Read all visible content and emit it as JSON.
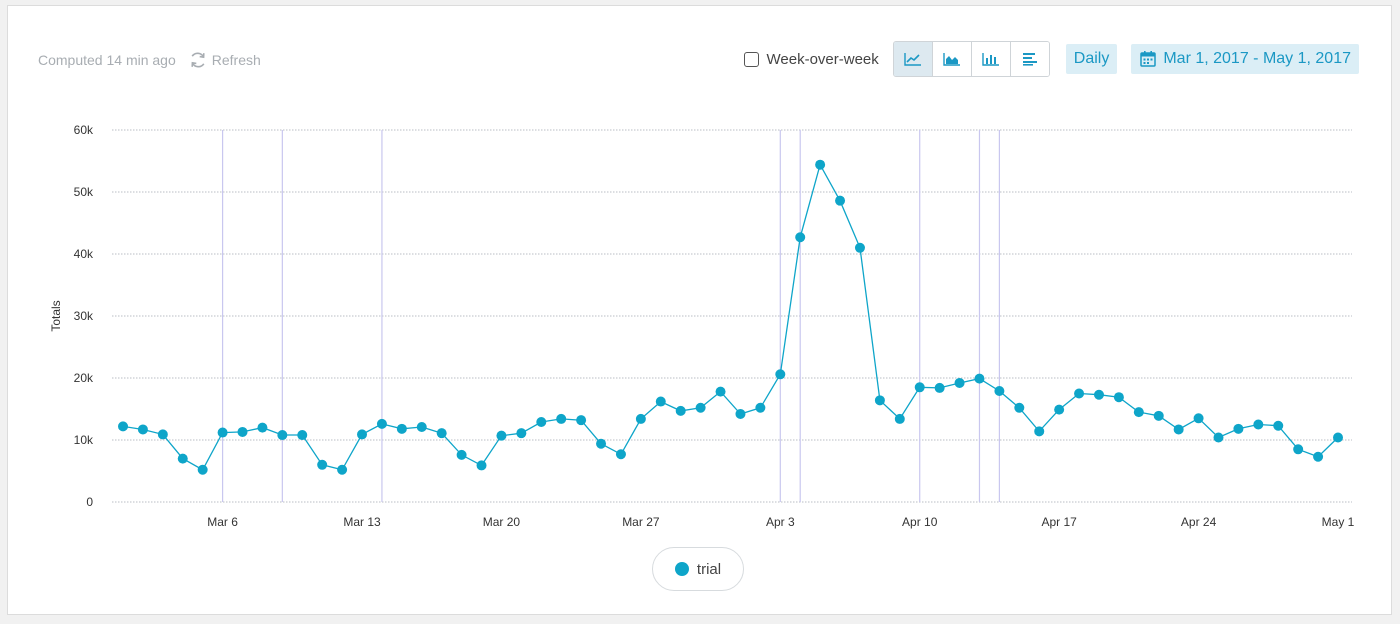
{
  "header": {
    "computed_label": "Computed 14 min ago",
    "refresh_label": "Refresh"
  },
  "toolbar": {
    "week_over_week_label": "Week-over-week",
    "week_over_week_checked": false,
    "view_buttons": [
      "line-chart",
      "area-chart",
      "bar-chart",
      "table"
    ],
    "active_view": "line-chart",
    "interval_label": "Daily",
    "date_range_label": "Mar 1, 2017 - May 1, 2017"
  },
  "colors": {
    "series": "#0ea5c9",
    "accent": "#1b98c4",
    "gridline": "#b9bec4",
    "marker_line": "#c9c7ef"
  },
  "chart_data": {
    "type": "line",
    "ylabel": "Totals",
    "xlabel": "",
    "ylim": [
      0,
      60000
    ],
    "y_ticks": [
      0,
      10000,
      20000,
      30000,
      40000,
      50000,
      60000
    ],
    "y_tick_labels": [
      "0",
      "10k",
      "20k",
      "30k",
      "40k",
      "50k",
      "60k"
    ],
    "x_tick_dates": [
      "2017-03-06",
      "2017-03-13",
      "2017-03-20",
      "2017-03-27",
      "2017-04-03",
      "2017-04-10",
      "2017-04-17",
      "2017-04-24",
      "2017-05-01"
    ],
    "x_tick_labels": [
      "Mar 6",
      "Mar 13",
      "Mar 20",
      "Mar 27",
      "Apr 3",
      "Apr 10",
      "Apr 17",
      "Apr 24",
      "May 1"
    ],
    "x": [
      "2017-03-01",
      "2017-03-02",
      "2017-03-03",
      "2017-03-04",
      "2017-03-05",
      "2017-03-06",
      "2017-03-07",
      "2017-03-08",
      "2017-03-09",
      "2017-03-10",
      "2017-03-11",
      "2017-03-12",
      "2017-03-13",
      "2017-03-14",
      "2017-03-15",
      "2017-03-16",
      "2017-03-17",
      "2017-03-18",
      "2017-03-19",
      "2017-03-20",
      "2017-03-21",
      "2017-03-22",
      "2017-03-23",
      "2017-03-24",
      "2017-03-25",
      "2017-03-26",
      "2017-03-27",
      "2017-03-28",
      "2017-03-29",
      "2017-03-30",
      "2017-03-31",
      "2017-04-01",
      "2017-04-02",
      "2017-04-03",
      "2017-04-04",
      "2017-04-05",
      "2017-04-06",
      "2017-04-07",
      "2017-04-08",
      "2017-04-09",
      "2017-04-10",
      "2017-04-11",
      "2017-04-12",
      "2017-04-13",
      "2017-04-14",
      "2017-04-15",
      "2017-04-16",
      "2017-04-17",
      "2017-04-18",
      "2017-04-19",
      "2017-04-20",
      "2017-04-21",
      "2017-04-22",
      "2017-04-23",
      "2017-04-24",
      "2017-04-25",
      "2017-04-26",
      "2017-04-27",
      "2017-04-28",
      "2017-04-29",
      "2017-04-30",
      "2017-05-01"
    ],
    "series": [
      {
        "name": "trial",
        "values": [
          12200,
          11700,
          10900,
          7000,
          5200,
          11200,
          11300,
          12000,
          10800,
          10800,
          6000,
          5200,
          10900,
          12600,
          11800,
          12100,
          11100,
          7600,
          5900,
          10700,
          11100,
          12900,
          13400,
          13200,
          9400,
          7700,
          13400,
          16200,
          14700,
          15200,
          17800,
          14200,
          15200,
          20600,
          42700,
          54400,
          48600,
          41000,
          16400,
          13400,
          18500,
          18400,
          19200,
          19900,
          17900,
          15200,
          11400,
          14900,
          17500,
          17300,
          16900,
          14500,
          13900,
          11700,
          13500,
          10400,
          11800,
          12500,
          12300,
          8500,
          7300,
          10400
        ]
      }
    ],
    "annotation_dates": [
      "2017-03-06",
      "2017-03-09",
      "2017-03-14",
      "2017-04-03",
      "2017-04-04",
      "2017-04-10",
      "2017-04-13",
      "2017-04-14"
    ],
    "legend": [
      "trial"
    ],
    "legend_position": "bottom-center",
    "grid": true
  }
}
